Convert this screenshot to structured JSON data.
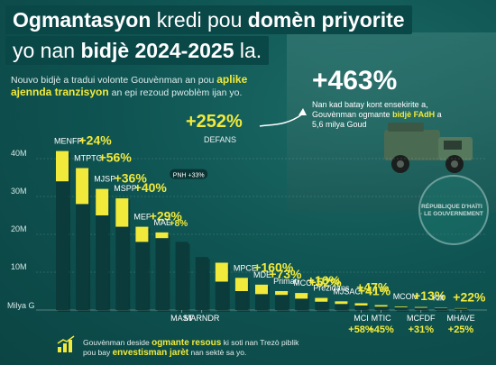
{
  "title": {
    "line1_strong": "Ogmantasyon",
    "line1_regular": "kredi pou",
    "line1_strong2": "domèn priyorite",
    "line2_regular": "yo nan",
    "line2_strong": "bidjè 2024-2025",
    "line2_regular2": "la."
  },
  "subtitle": {
    "part1": "Nouvo bidjè a tradui volonte Gouvènman an pou",
    "highlight1": "aplike ajennda tranzisyon",
    "part2": "an epi rezoud pwoblèm ijan yo."
  },
  "callout": {
    "percent": "+463%",
    "text_before": "Nan kad batay kont ensekirite a, Gouvènman ogmante",
    "text_highlight": "bidjè FAdH",
    "text_after": "a 5,6 milya Goud"
  },
  "defense_label": {
    "percent": "+252%",
    "name": "DEFANS"
  },
  "seal_text": "RÉPUBLIQUE D'HAÏTI · LE GOUVERNEMENT",
  "footer": {
    "part1": "Gouvènman deside",
    "highlight1": "ogmante resous",
    "part2": "ki soti nan Trezò piblik pou bay",
    "highlight2": "envestisman jarèt",
    "part3": "nan sektè sa yo."
  },
  "colors": {
    "yellow": "#f2ea3a",
    "dark_bar": "#0b3b3a",
    "background": "#0f5150"
  },
  "chart_data": {
    "type": "bar",
    "stacked": true,
    "unit_label": "Milya G",
    "yticks": [
      "10M",
      "20M",
      "30M",
      "40M"
    ],
    "ylim": [
      0,
      45
    ],
    "grid": true,
    "categories": [
      "MENFP",
      "MTPTC",
      "MJSP",
      "MSPP",
      "MEF",
      "MAE",
      "MAST",
      "MARNDR",
      "DEFANS",
      "MPCE",
      "MDE",
      "Primati",
      "MCC",
      "Prezidans",
      "MJSAC",
      "MCI",
      "MTIC",
      "MCOM",
      "MCFDF",
      "Kilt",
      "MHAVE"
    ],
    "percent_labels": [
      "+24%",
      "+56%",
      "+36%",
      "+40%",
      "+29%",
      "+8%",
      "",
      "",
      "+252%",
      "+160%",
      "+73%",
      "+16%",
      "+52%",
      "+47%",
      "+41%",
      "+58%",
      "+45%",
      "+13%",
      "+31%",
      "+22%",
      "+25%"
    ],
    "series": [
      {
        "name": "",
        "values": [
          34,
          28,
          25,
          22,
          18,
          19,
          18,
          14,
          7.5,
          5,
          4.2,
          4,
          3,
          2.2,
          1.6,
          1.2,
          0.9,
          0.7,
          0.6,
          0.5,
          0.4
        ]
      },
      {
        "name": "",
        "values": [
          8,
          9.5,
          7,
          7.5,
          4,
          1.5,
          0,
          0,
          5,
          3.5,
          2.5,
          1,
          1.5,
          1,
          0.7,
          0.6,
          0.4,
          0.2,
          0.2,
          0.1,
          0.1
        ]
      }
    ],
    "annotations": [
      {
        "text": "PNH +33%",
        "near": "MJSP"
      }
    ]
  }
}
